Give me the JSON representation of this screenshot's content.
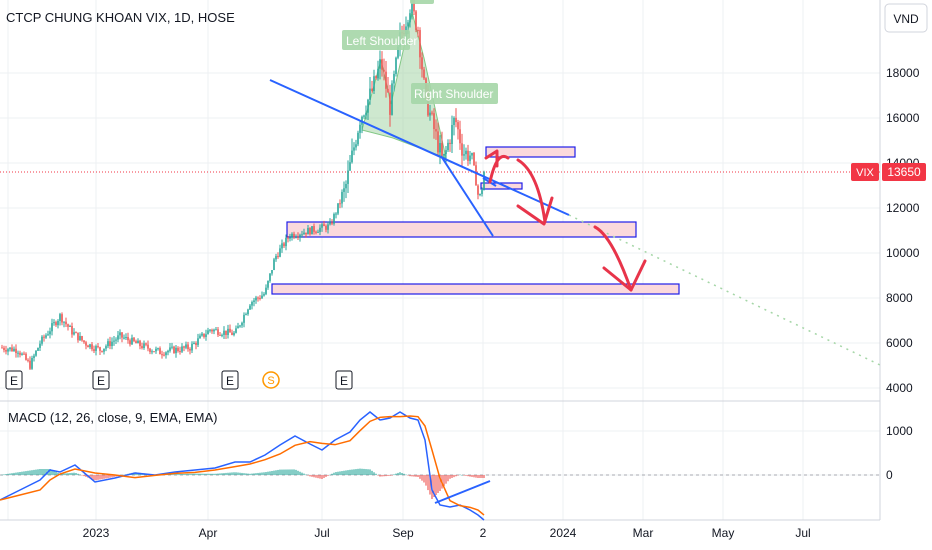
{
  "header": {
    "title": "CTCP CHUNG KHOAN VIX, 1D, HOSE",
    "currency": "VND"
  },
  "price_tag": {
    "symbol": "VIX",
    "value": "13650",
    "color": "#f23645"
  },
  "macd": {
    "title": "MACD (12, 26, close, 9, EMA, EMA)"
  },
  "colors": {
    "up": "#26a69a",
    "down": "#ef5350",
    "macd": "#2962ff",
    "signal": "#ff6d00",
    "zone_fill": "#fbd9dc",
    "zone_border": "#1e1ee8",
    "trend": "#2962ff",
    "arrow": "#e8344a",
    "pattern": "#a5d6a7"
  },
  "chart_data": {
    "type": "candlestick",
    "price_ticks": [
      "18000",
      "16000",
      "14000",
      "12000",
      "10000",
      "8000",
      "6000",
      "4000"
    ],
    "macd_ticks": [
      "1000",
      "0"
    ],
    "x_ticks": [
      "2023",
      "Apr",
      "Jul",
      "Sep",
      "2",
      "2024",
      "Mar",
      "May",
      "Jul"
    ],
    "last_price": 13650,
    "pattern_labels": [
      "Left Shoulder",
      "Right Shoulder"
    ],
    "earnings_markers": [
      "E",
      "E",
      "E",
      "E"
    ],
    "split_marker": "S"
  }
}
